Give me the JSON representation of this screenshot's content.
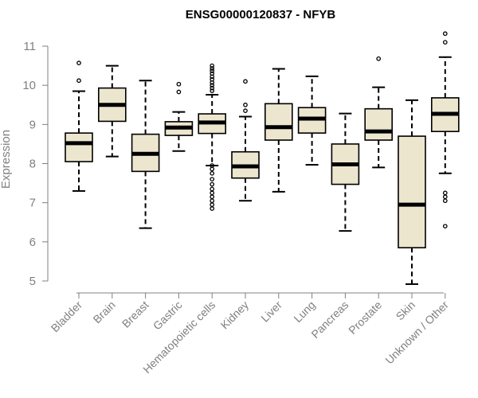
{
  "chart_data": {
    "type": "box",
    "title": "ENSG00000120837 - NFYB",
    "ylabel": "Expression",
    "xlabel": "",
    "ylim": [
      5,
      11
    ],
    "yticks": [
      5,
      6,
      7,
      8,
      9,
      10,
      11
    ],
    "box_color": "#ede6cf",
    "categories": [
      "Bladder",
      "Brain",
      "Breast",
      "Gastric",
      "Hematopoietic cells",
      "Kidney",
      "Liver",
      "Lung",
      "Pancreas",
      "Prostate",
      "Skin",
      "Unknown / Other"
    ],
    "boxes": [
      {
        "min": 7.3,
        "q1": 8.05,
        "median": 8.52,
        "q3": 8.78,
        "max": 9.85,
        "outliers": [
          10.12,
          10.57
        ]
      },
      {
        "min": 8.18,
        "q1": 9.08,
        "median": 9.5,
        "q3": 9.93,
        "max": 10.5,
        "outliers": []
      },
      {
        "min": 6.35,
        "q1": 7.8,
        "median": 8.25,
        "q3": 8.75,
        "max": 10.12,
        "outliers": []
      },
      {
        "min": 8.32,
        "q1": 8.72,
        "median": 8.92,
        "q3": 9.07,
        "max": 9.32,
        "outliers": [
          9.83,
          10.03
        ]
      },
      {
        "min": 7.95,
        "q1": 8.77,
        "median": 9.05,
        "q3": 9.27,
        "max": 9.76,
        "outliers": [
          10.5,
          10.43,
          10.37,
          10.3,
          10.22,
          10.15,
          10.07,
          10.0,
          9.93,
          9.86,
          7.95,
          7.86,
          7.75,
          7.6,
          7.47,
          7.35,
          7.25,
          7.15,
          7.05,
          6.95,
          6.85
        ]
      },
      {
        "min": 7.05,
        "q1": 7.63,
        "median": 7.93,
        "q3": 8.3,
        "max": 9.2,
        "outliers": [
          9.35,
          9.5,
          10.1
        ]
      },
      {
        "min": 7.28,
        "q1": 8.6,
        "median": 8.93,
        "q3": 9.53,
        "max": 10.42,
        "outliers": []
      },
      {
        "min": 7.97,
        "q1": 8.78,
        "median": 9.15,
        "q3": 9.43,
        "max": 10.23,
        "outliers": []
      },
      {
        "min": 6.28,
        "q1": 7.47,
        "median": 7.98,
        "q3": 8.5,
        "max": 9.28,
        "outliers": []
      },
      {
        "min": 7.9,
        "q1": 8.6,
        "median": 8.82,
        "q3": 9.4,
        "max": 9.95,
        "outliers": [
          10.68
        ]
      },
      {
        "min": 4.92,
        "q1": 5.85,
        "median": 6.95,
        "q3": 8.7,
        "max": 9.62,
        "outliers": []
      },
      {
        "min": 7.75,
        "q1": 8.82,
        "median": 9.27,
        "q3": 9.68,
        "max": 10.72,
        "outliers": [
          11.32,
          11.1,
          7.25,
          7.15,
          7.05,
          6.4
        ]
      }
    ]
  }
}
